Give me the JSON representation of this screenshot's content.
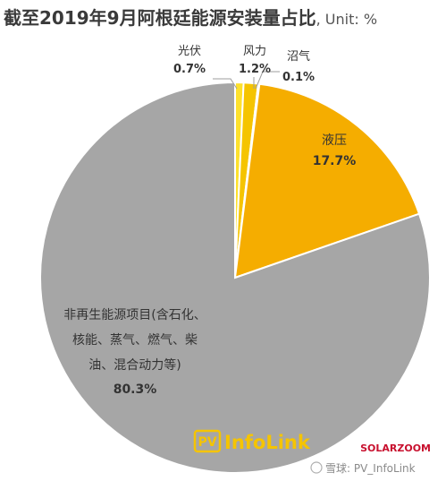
{
  "chart_data": {
    "type": "pie",
    "title": "截至2019年9月阿根廷能源安装量占比",
    "subtitle": ", Unit: %",
    "slices": [
      {
        "label": "光伏",
        "value": 0.7,
        "value_label": "0.7%",
        "color": "#fde12d"
      },
      {
        "label": "风力",
        "value": 1.2,
        "value_label": "1.2%",
        "color": "#f5c400"
      },
      {
        "label": "沼气",
        "value": 0.1,
        "value_label": "0.1%",
        "color": "#d7d7d7"
      },
      {
        "label": "液压",
        "value": 17.7,
        "value_label": "17.7%",
        "color": "#f5ad00"
      },
      {
        "label": "非再生能源项目(含石化、核能、蒸气、燃气、柴油、混合动力等)",
        "label_lines": [
          "非再生能源项目(含石化、",
          "核能、蒸气、燃气、柴",
          "油、混合动力等)"
        ],
        "value": 80.3,
        "value_label": "80.3%",
        "color": "#a6a6a6"
      }
    ]
  },
  "watermarks": {
    "brand_pv": "PV",
    "brand_name": "InfoLink",
    "solarzoom": "SOLARZOOM",
    "weibo": "雪球: PV_InfoLink"
  }
}
